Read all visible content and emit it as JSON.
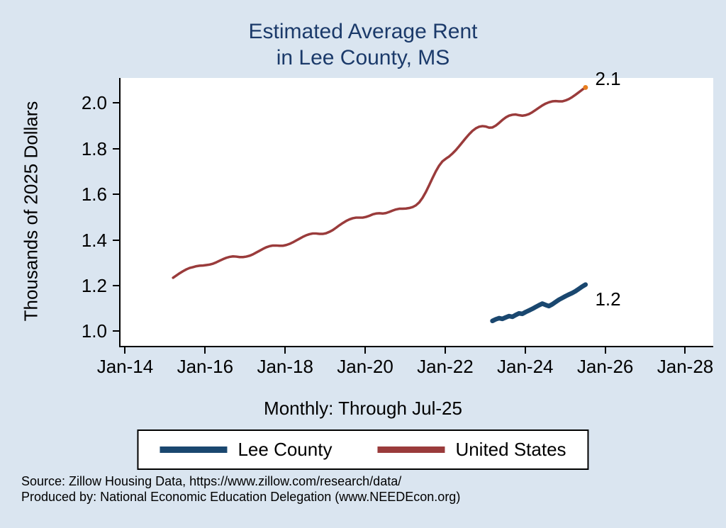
{
  "title": {
    "line1": "Estimated Average Rent",
    "line2": "in Lee County, MS"
  },
  "subtitle": "Monthly: Through Jul-25",
  "source": {
    "line1": "Source: Zillow Housing Data, https://www.zillow.com/research/data/",
    "line2": "Produced by: National Economic Education Delegation (www.NEEDEcon.org)"
  },
  "colors": {
    "background": "#dae5f0",
    "title": "#1b3a6a",
    "lee_county": "#1A476F",
    "united_states": "#9a3b3b",
    "end_marker": "#e87d1e",
    "axis": "#000000"
  },
  "legend": [
    {
      "label": "Lee County",
      "color": "#1A476F"
    },
    {
      "label": "United States",
      "color": "#9a3b3b"
    }
  ],
  "chart_data": {
    "type": "line",
    "title": "Estimated Average Rent in Lee County, MS",
    "subtitle": "Monthly: Through Jul-25",
    "xlabel": "",
    "ylabel": "Thousands of 2025 Dollars",
    "ylim": [
      0.93,
      2.11
    ],
    "xlim_decimal_years": [
      2013.85,
      2028.7
    ],
    "grid": false,
    "legend_position": "bottom",
    "y_ticks": [
      {
        "v": 1.0,
        "label": "1.0"
      },
      {
        "v": 1.2,
        "label": "1.2"
      },
      {
        "v": 1.4,
        "label": "1.4"
      },
      {
        "v": 1.6,
        "label": "1.6"
      },
      {
        "v": 1.8,
        "label": "1.8"
      },
      {
        "v": 2.0,
        "label": "2.0"
      }
    ],
    "x_ticks": [
      {
        "x": 2014,
        "label": "Jan-14"
      },
      {
        "x": 2016,
        "label": "Jan-16"
      },
      {
        "x": 2018,
        "label": "Jan-18"
      },
      {
        "x": 2020,
        "label": "Jan-20"
      },
      {
        "x": 2022,
        "label": "Jan-22"
      },
      {
        "x": 2024,
        "label": "Jan-24"
      },
      {
        "x": 2026,
        "label": "Jan-26"
      },
      {
        "x": 2028,
        "label": "Jan-28"
      }
    ],
    "series": [
      {
        "name": "United States",
        "color": "#9a3b3b",
        "width": 3.5,
        "start_decimal_year": 2015.167,
        "start_month": "Mar-15",
        "end_month": "Jul-25",
        "end_label": "2.1",
        "end_marker_color": "#e87d1e",
        "label_dx": 14,
        "label_dy": -26,
        "values": [
          1.23,
          1.24,
          1.25,
          1.259,
          1.267,
          1.273,
          1.277,
          1.281,
          1.283,
          1.284,
          1.286,
          1.288,
          1.292,
          1.298,
          1.305,
          1.312,
          1.318,
          1.322,
          1.324,
          1.323,
          1.321,
          1.321,
          1.323,
          1.327,
          1.333,
          1.341,
          1.349,
          1.357,
          1.364,
          1.369,
          1.372,
          1.372,
          1.371,
          1.371,
          1.374,
          1.379,
          1.386,
          1.394,
          1.402,
          1.41,
          1.417,
          1.422,
          1.425,
          1.425,
          1.423,
          1.423,
          1.426,
          1.432,
          1.44,
          1.45,
          1.461,
          1.471,
          1.48,
          1.487,
          1.492,
          1.495,
          1.495,
          1.495,
          1.498,
          1.503,
          1.509,
          1.513,
          1.514,
          1.513,
          1.515,
          1.52,
          1.526,
          1.531,
          1.534,
          1.534,
          1.535,
          1.537,
          1.541,
          1.549,
          1.562,
          1.582,
          1.608,
          1.638,
          1.669,
          1.699,
          1.724,
          1.743,
          1.754,
          1.764,
          1.777,
          1.792,
          1.809,
          1.827,
          1.845,
          1.862,
          1.877,
          1.888,
          1.895,
          1.898,
          1.896,
          1.891,
          1.892,
          1.9,
          1.912,
          1.925,
          1.936,
          1.944,
          1.948,
          1.949,
          1.946,
          1.944,
          1.946,
          1.951,
          1.959,
          1.969,
          1.979,
          1.989,
          1.997,
          2.003,
          2.007,
          2.008,
          2.007,
          2.007,
          2.011,
          2.017,
          2.026,
          2.036,
          2.047,
          2.058,
          2.068
        ]
      },
      {
        "name": "Lee County",
        "color": "#1A476F",
        "width": 6.5,
        "start_decimal_year": 2023.167,
        "start_month": "Mar-23",
        "end_month": "Jul-25",
        "end_label": "1.2",
        "end_marker_color": null,
        "label_dx": 14,
        "label_dy": 6,
        "values": [
          1.04,
          1.047,
          1.052,
          1.049,
          1.055,
          1.061,
          1.058,
          1.066,
          1.073,
          1.071,
          1.079,
          1.086,
          1.093,
          1.101,
          1.109,
          1.116,
          1.11,
          1.105,
          1.113,
          1.123,
          1.133,
          1.141,
          1.149,
          1.156,
          1.163,
          1.171,
          1.181,
          1.191,
          1.2
        ]
      }
    ]
  }
}
